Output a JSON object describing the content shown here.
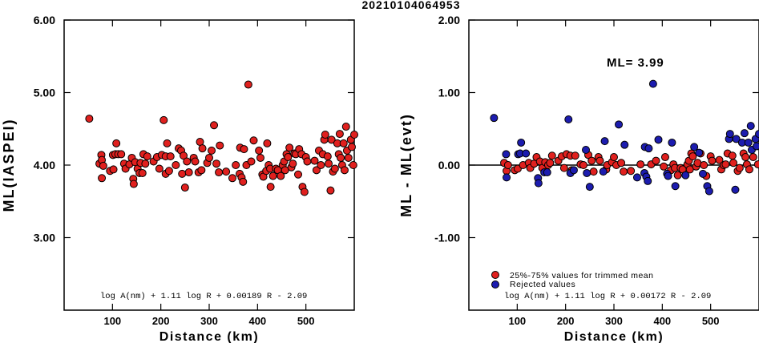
{
  "title": "20210104064953",
  "chart_data": [
    {
      "type": "scatter",
      "xlabel": "Distance (km)",
      "ylabel": "ML(IASPEI)",
      "xlim": [
        0,
        600
      ],
      "ylim": [
        2.0,
        6.0
      ],
      "xticks": [
        100,
        200,
        300,
        400,
        500
      ],
      "yticks": [
        3.0,
        4.0,
        5.0,
        6.0
      ],
      "ytick_labels": [
        "3.00",
        "4.00",
        "5.00",
        "6.00"
      ],
      "formula": "log A(nm) + 1.11 log R + 0.00189 R - 2.09",
      "colors": {
        "point": "#e0201e",
        "edge": "#000000"
      },
      "series": [
        {
          "points": [
            [
              52,
              4.64
            ],
            [
              73,
              4.02
            ],
            [
              77,
              4.14
            ],
            [
              78,
              3.82
            ],
            [
              78,
              4.07
            ],
            [
              81,
              3.99
            ],
            [
              95,
              3.92
            ],
            [
              101,
              4.14
            ],
            [
              102,
              3.94
            ],
            [
              106,
              4.15
            ],
            [
              108,
              4.3
            ],
            [
              112,
              4.15
            ],
            [
              118,
              4.15
            ],
            [
              124,
              4.02
            ],
            [
              127,
              3.95
            ],
            [
              135,
              4.01
            ],
            [
              140,
              4.1
            ],
            [
              143,
              3.81
            ],
            [
              144,
              3.74
            ],
            [
              147,
              4.04
            ],
            [
              152,
              3.95
            ],
            [
              156,
              3.89
            ],
            [
              158,
              4.03
            ],
            [
              162,
              3.89
            ],
            [
              164,
              4.15
            ],
            [
              168,
              4.02
            ],
            [
              172,
              4.12
            ],
            [
              185,
              4.05
            ],
            [
              192,
              4.11
            ],
            [
              197,
              3.95
            ],
            [
              202,
              4.14
            ],
            [
              206,
              4.62
            ],
            [
              210,
              4.12
            ],
            [
              210,
              3.88
            ],
            [
              213,
              4.3
            ],
            [
              217,
              3.92
            ],
            [
              220,
              4.12
            ],
            [
              231,
              4.0
            ],
            [
              237,
              4.23
            ],
            [
              242,
              4.2
            ],
            [
              244,
              3.88
            ],
            [
              247,
              4.13
            ],
            [
              250,
              3.69
            ],
            [
              254,
              4.05
            ],
            [
              258,
              3.9
            ],
            [
              268,
              4.1
            ],
            [
              271,
              4.05
            ],
            [
              278,
              3.9
            ],
            [
              281,
              4.32
            ],
            [
              284,
              3.93
            ],
            [
              286,
              4.23
            ],
            [
              296,
              4.03
            ],
            [
              300,
              4.1
            ],
            [
              305,
              4.2
            ],
            [
              310,
              4.55
            ],
            [
              315,
              4.02
            ],
            [
              320,
              3.9
            ],
            [
              322,
              4.27
            ],
            [
              335,
              3.91
            ],
            [
              348,
              3.82
            ],
            [
              355,
              4.0
            ],
            [
              363,
              3.88
            ],
            [
              364,
              4.24
            ],
            [
              367,
              3.83
            ],
            [
              370,
              3.77
            ],
            [
              372,
              4.22
            ],
            [
              377,
              4.0
            ],
            [
              381,
              5.11
            ],
            [
              387,
              4.05
            ],
            [
              392,
              4.34
            ],
            [
              403,
              4.2
            ],
            [
              406,
              4.1
            ],
            [
              410,
              3.87
            ],
            [
              412,
              3.84
            ],
            [
              418,
              3.92
            ],
            [
              420,
              4.3
            ],
            [
              423,
              4.0
            ],
            [
              426,
              3.95
            ],
            [
              427,
              3.7
            ],
            [
              432,
              3.85
            ],
            [
              438,
              3.95
            ],
            [
              442,
              3.93
            ],
            [
              448,
              3.85
            ],
            [
              452,
              4.0
            ],
            [
              455,
              4.05
            ],
            [
              457,
              3.93
            ],
            [
              460,
              4.15
            ],
            [
              463,
              4.11
            ],
            [
              466,
              4.24
            ],
            [
              470,
              3.97
            ],
            [
              473,
              4.02
            ],
            [
              476,
              4.16
            ],
            [
              479,
              4.15
            ],
            [
              484,
              3.87
            ],
            [
              486,
              4.22
            ],
            [
              491,
              4.15
            ],
            [
              493,
              3.7
            ],
            [
              497,
              3.63
            ],
            [
              500,
              4.11
            ],
            [
              503,
              4.05
            ],
            [
              518,
              4.06
            ],
            [
              522,
              3.93
            ],
            [
              527,
              4.2
            ],
            [
              531,
              4.0
            ],
            [
              535,
              4.15
            ],
            [
              538,
              4.35
            ],
            [
              540,
              4.42
            ],
            [
              545,
              4.12
            ],
            [
              547,
              4.02
            ],
            [
              551,
              3.65
            ],
            [
              553,
              4.35
            ],
            [
              556,
              3.91
            ],
            [
              560,
              3.95
            ],
            [
              565,
              4.3
            ],
            [
              568,
              4.15
            ],
            [
              570,
              4.43
            ],
            [
              572,
              4.1
            ],
            [
              575,
              4.0
            ],
            [
              578,
              4.3
            ],
            [
              580,
              3.93
            ],
            [
              583,
              4.53
            ],
            [
              585,
              4.2
            ],
            [
              588,
              4.1
            ],
            [
              593,
              4.35
            ],
            [
              595,
              4.25
            ],
            [
              598,
              4.0
            ],
            [
              600,
              4.42
            ]
          ]
        }
      ]
    },
    {
      "type": "scatter",
      "xlabel": "Distance (km)",
      "ylabel": "ML - ML(evt)",
      "xlim": [
        0,
        600
      ],
      "ylim": [
        -2.0,
        2.0
      ],
      "xticks": [
        100,
        200,
        300,
        400,
        500
      ],
      "yticks": [
        -1.0,
        0.0,
        1.0,
        2.0
      ],
      "ytick_labels": [
        "-1.00",
        "0.00",
        "1.00",
        "2.00"
      ],
      "reference_line": 0.0,
      "annotation": "ML= 3.99",
      "formula": "log A(nm) + 1.11 log R + 0.00172 R - 2.09",
      "legend": {
        "placement": "bottom-left",
        "entries": [
          "25%-75% values for trimmed mean",
          "Rejected values"
        ]
      },
      "colors": {
        "trimmed": "#e0201e",
        "rejected": "#1c1caf",
        "edge": "#000000"
      },
      "series": [
        {
          "name": "25%-75% values for trimmed mean",
          "points": [
            [
              73,
              0.03
            ],
            [
              78,
              -0.08
            ],
            [
              81,
              0.0
            ],
            [
              95,
              -0.07
            ],
            [
              101,
              -0.05
            ],
            [
              112,
              0.0
            ],
            [
              124,
              0.03
            ],
            [
              127,
              -0.04
            ],
            [
              135,
              0.02
            ],
            [
              140,
              0.11
            ],
            [
              147,
              0.05
            ],
            [
              152,
              -0.04
            ],
            [
              158,
              0.04
            ],
            [
              164,
              0.0
            ],
            [
              168,
              0.03
            ],
            [
              172,
              0.13
            ],
            [
              185,
              0.06
            ],
            [
              192,
              0.12
            ],
            [
              197,
              -0.04
            ],
            [
              202,
              0.15
            ],
            [
              210,
              0.13
            ],
            [
              213,
              -0.07
            ],
            [
              220,
              0.13
            ],
            [
              231,
              0.01
            ],
            [
              237,
              0.0
            ],
            [
              247,
              0.14
            ],
            [
              254,
              0.06
            ],
            [
              258,
              -0.09
            ],
            [
              268,
              0.11
            ],
            [
              271,
              0.06
            ],
            [
              284,
              -0.06
            ],
            [
              286,
              0.0
            ],
            [
              296,
              0.04
            ],
            [
              300,
              0.11
            ],
            [
              305,
              0.0
            ],
            [
              315,
              0.03
            ],
            [
              320,
              -0.09
            ],
            [
              335,
              -0.08
            ],
            [
              355,
              0.01
            ],
            [
              377,
              0.01
            ],
            [
              387,
              0.06
            ],
            [
              403,
              -0.02
            ],
            [
              406,
              0.11
            ],
            [
              418,
              -0.07
            ],
            [
              423,
              0.01
            ],
            [
              426,
              -0.04
            ],
            [
              432,
              -0.14
            ],
            [
              438,
              -0.04
            ],
            [
              442,
              -0.06
            ],
            [
              452,
              0.01
            ],
            [
              455,
              0.06
            ],
            [
              457,
              -0.06
            ],
            [
              460,
              0.16
            ],
            [
              463,
              0.12
            ],
            [
              470,
              -0.02
            ],
            [
              473,
              0.03
            ],
            [
              479,
              0.16
            ],
            [
              486,
              0.0
            ],
            [
              491,
              -0.15
            ],
            [
              500,
              0.12
            ],
            [
              503,
              0.06
            ],
            [
              518,
              0.07
            ],
            [
              522,
              -0.06
            ],
            [
              527,
              0.0
            ],
            [
              531,
              0.01
            ],
            [
              535,
              0.16
            ],
            [
              545,
              0.13
            ],
            [
              547,
              0.03
            ],
            [
              556,
              -0.08
            ],
            [
              560,
              -0.04
            ],
            [
              568,
              0.16
            ],
            [
              572,
              0.11
            ],
            [
              575,
              0.01
            ],
            [
              580,
              -0.06
            ],
            [
              588,
              0.11
            ],
            [
              598,
              0.01
            ]
          ]
        },
        {
          "name": "Rejected values",
          "points": [
            [
              52,
              0.65
            ],
            [
              77,
              0.15
            ],
            [
              78,
              -0.17
            ],
            [
              102,
              0.15
            ],
            [
              106,
              0.16
            ],
            [
              108,
              0.31
            ],
            [
              118,
              0.16
            ],
            [
              143,
              -0.18
            ],
            [
              144,
              -0.25
            ],
            [
              156,
              -0.1
            ],
            [
              162,
              -0.1
            ],
            [
              206,
              0.63
            ],
            [
              210,
              -0.11
            ],
            [
              217,
              -0.07
            ],
            [
              242,
              0.21
            ],
            [
              244,
              -0.11
            ],
            [
              250,
              -0.3
            ],
            [
              278,
              -0.09
            ],
            [
              281,
              0.33
            ],
            [
              310,
              0.56
            ],
            [
              322,
              0.28
            ],
            [
              348,
              -0.17
            ],
            [
              363,
              -0.11
            ],
            [
              364,
              0.25
            ],
            [
              367,
              -0.16
            ],
            [
              370,
              -0.22
            ],
            [
              372,
              0.23
            ],
            [
              381,
              1.12
            ],
            [
              392,
              0.35
            ],
            [
              410,
              -0.12
            ],
            [
              412,
              -0.15
            ],
            [
              420,
              0.31
            ],
            [
              427,
              -0.29
            ],
            [
              448,
              -0.14
            ],
            [
              466,
              0.25
            ],
            [
              476,
              0.17
            ],
            [
              484,
              -0.12
            ],
            [
              493,
              -0.29
            ],
            [
              497,
              -0.36
            ],
            [
              538,
              0.36
            ],
            [
              540,
              0.43
            ],
            [
              551,
              -0.34
            ],
            [
              553,
              0.36
            ],
            [
              565,
              0.31
            ],
            [
              570,
              0.44
            ],
            [
              578,
              0.31
            ],
            [
              583,
              0.54
            ],
            [
              585,
              0.21
            ],
            [
              593,
              0.36
            ],
            [
              595,
              0.26
            ],
            [
              600,
              0.43
            ]
          ]
        }
      ]
    }
  ]
}
